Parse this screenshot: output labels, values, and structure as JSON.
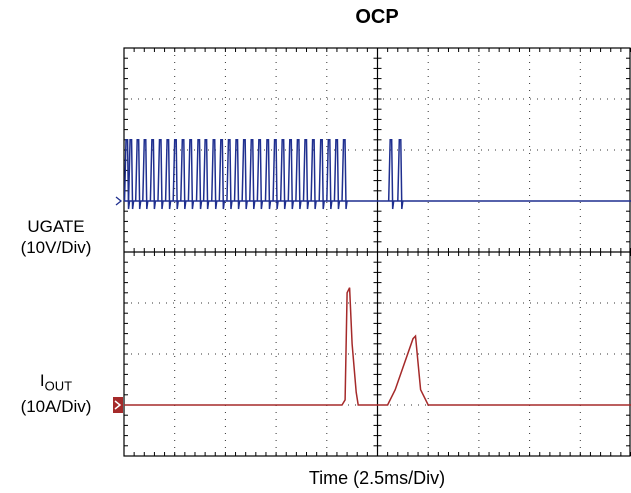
{
  "chart_data": {
    "type": "line",
    "title": "OCP",
    "xlabel": "Time (2.5ms/Div)",
    "grid": true,
    "divisions": {
      "x": 10,
      "y": 8
    },
    "channels": [
      {
        "name_line1": "UGATE",
        "name_line2": "(10V/Div)",
        "color": "#1f2f8f",
        "baseline_div": 5.0,
        "pulse_high_div": 6.2,
        "pulses_burst1": [
          0.04,
          0.12,
          0.26,
          0.4,
          0.55,
          0.7,
          0.85,
          1.0,
          1.15,
          1.3,
          1.46,
          1.6,
          1.76,
          1.91,
          2.06,
          2.21,
          2.36,
          2.51,
          2.66,
          2.82,
          2.97,
          3.12,
          3.27,
          3.42,
          3.57,
          3.72,
          3.88,
          4.03,
          4.18,
          4.33
        ],
        "pulses_burst2": [
          5.25,
          5.43
        ]
      },
      {
        "name_main": "I",
        "name_sub": "OUT",
        "name_line2": "(10A/Div)",
        "color": "#a52a2a",
        "baseline_div": 1.0,
        "trace": [
          [
            0,
            1.0
          ],
          [
            4.3,
            1.0
          ],
          [
            4.36,
            1.1
          ],
          [
            4.4,
            3.2
          ],
          [
            4.45,
            3.3
          ],
          [
            4.5,
            2.2
          ],
          [
            4.58,
            1.25
          ],
          [
            4.62,
            1.0
          ],
          [
            5.2,
            1.0
          ],
          [
            5.35,
            1.3
          ],
          [
            5.7,
            2.3
          ],
          [
            5.75,
            2.35
          ],
          [
            5.85,
            1.3
          ],
          [
            6.0,
            1.0
          ],
          [
            10,
            1.0
          ]
        ]
      }
    ]
  }
}
